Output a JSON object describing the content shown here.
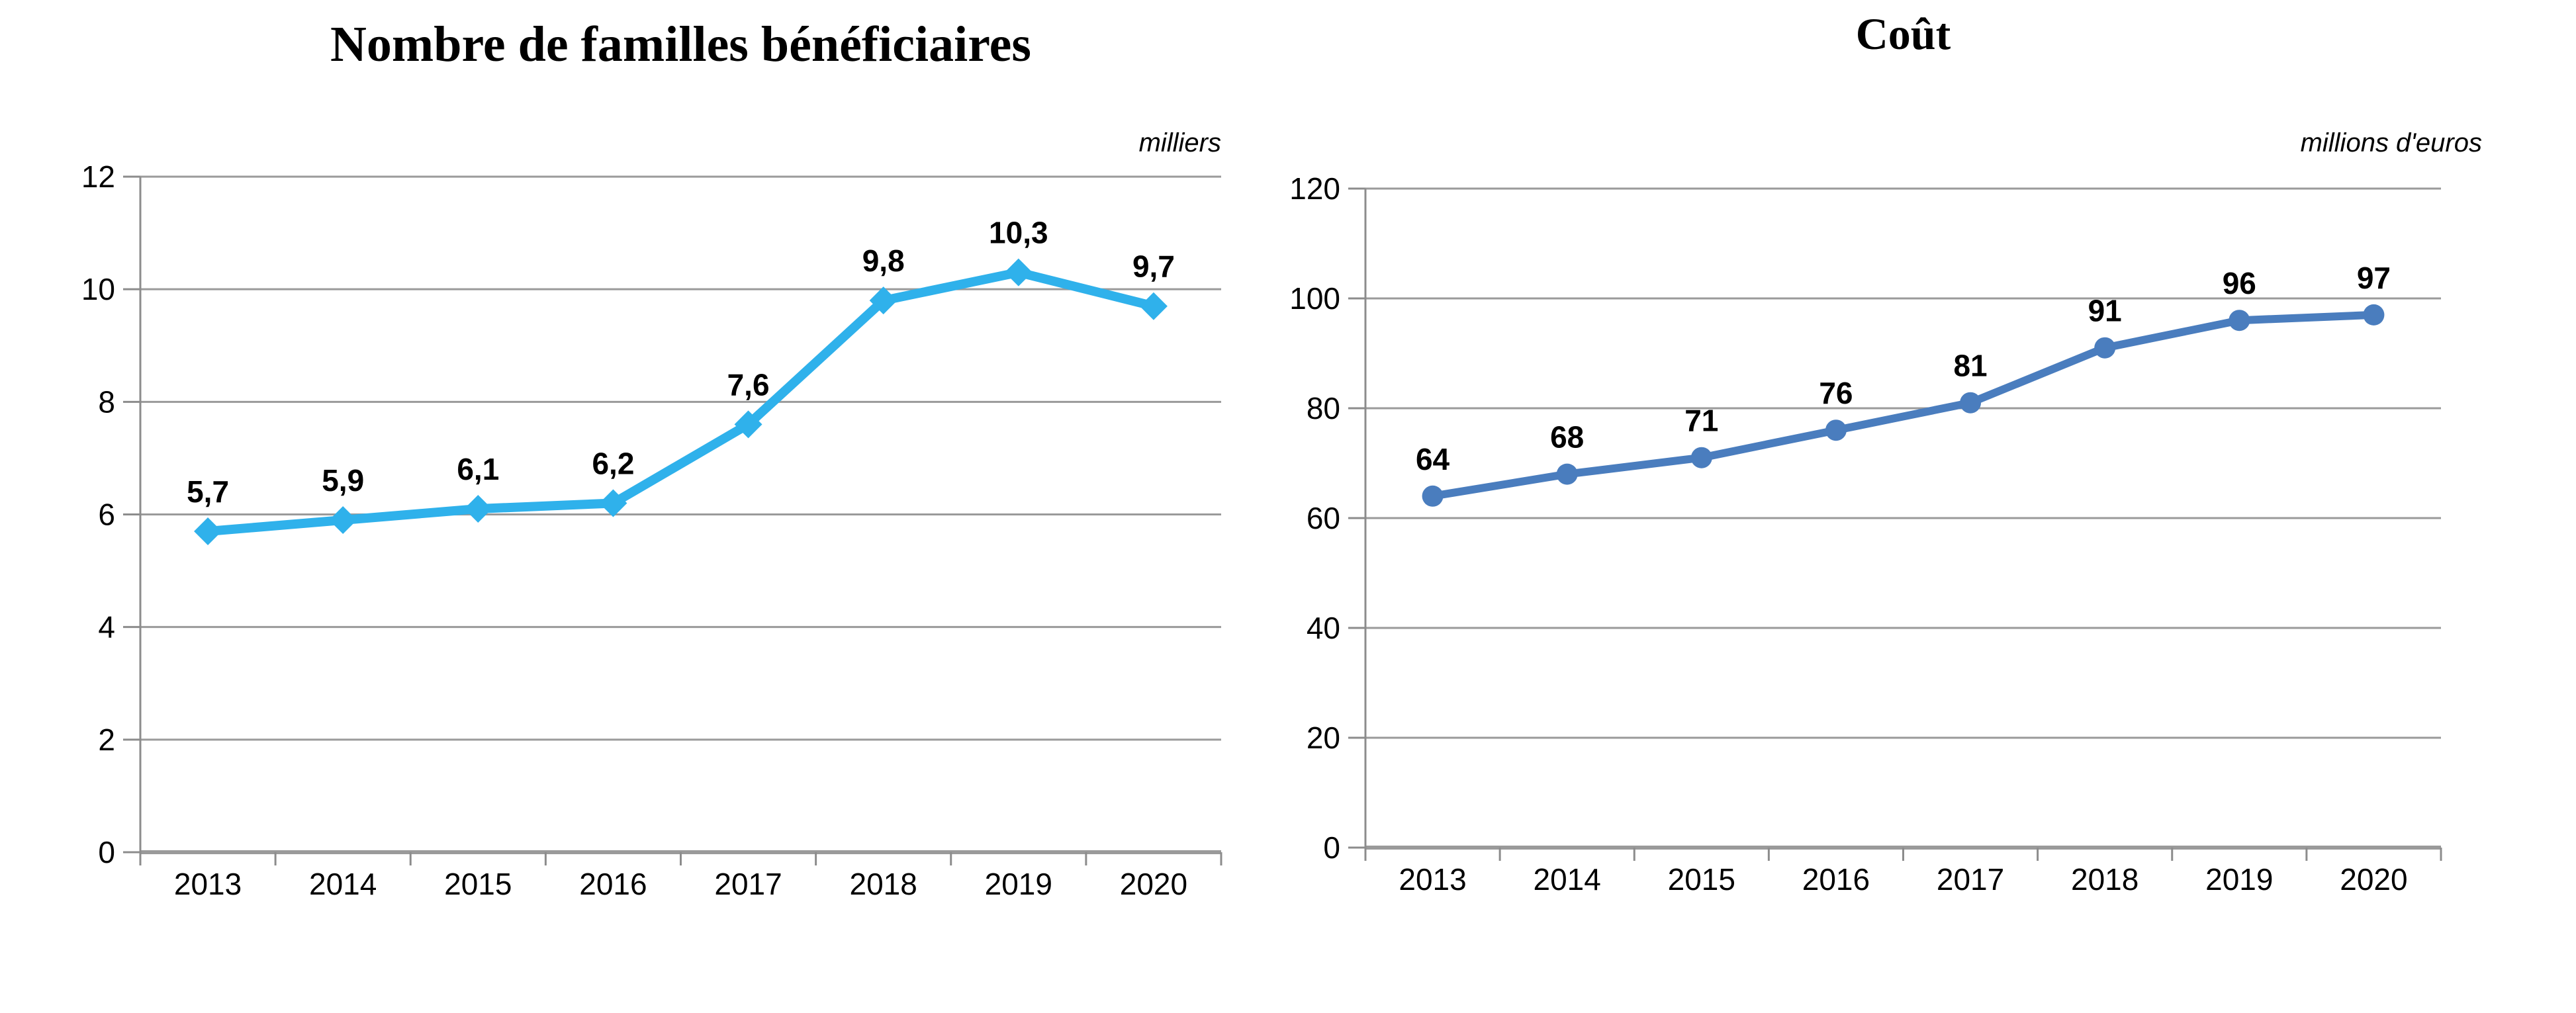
{
  "page_background": "#ffffff",
  "grid_color": "#9a9a9a",
  "axis_color": "#8c8c8c",
  "text_color": "#000000",
  "chart_data": [
    {
      "type": "line",
      "title": "Nombre de familles bénéficiaires",
      "unit_label": "milliers",
      "categories": [
        "2013",
        "2014",
        "2015",
        "2016",
        "2017",
        "2018",
        "2019",
        "2020"
      ],
      "values": [
        5.7,
        5.9,
        6.1,
        6.2,
        7.6,
        9.8,
        10.3,
        9.7
      ],
      "point_labels": [
        "5,7",
        "5,9",
        "6,1",
        "6,2",
        "7,6",
        "9,8",
        "10,3",
        "9,7"
      ],
      "y_ticks": [
        0,
        2,
        4,
        6,
        8,
        10,
        12
      ],
      "ylim": [
        0,
        12
      ],
      "xlabel": "",
      "ylabel": "",
      "grid": true,
      "legend": "none",
      "line_color": "#2FB1EB",
      "marker": "diamond"
    },
    {
      "type": "line",
      "title": "Coût",
      "unit_label": "millions d'euros",
      "categories": [
        "2013",
        "2014",
        "2015",
        "2016",
        "2017",
        "2018",
        "2019",
        "2020"
      ],
      "values": [
        64,
        68,
        71,
        76,
        81,
        91,
        96,
        97
      ],
      "point_labels": [
        "64",
        "68",
        "71",
        "76",
        "81",
        "91",
        "96",
        "97"
      ],
      "y_ticks": [
        0,
        20,
        40,
        60,
        80,
        100,
        120
      ],
      "ylim": [
        0,
        120
      ],
      "xlabel": "",
      "ylabel": "",
      "grid": true,
      "legend": "none",
      "line_color": "#4A7DBE",
      "marker": "circle"
    }
  ]
}
